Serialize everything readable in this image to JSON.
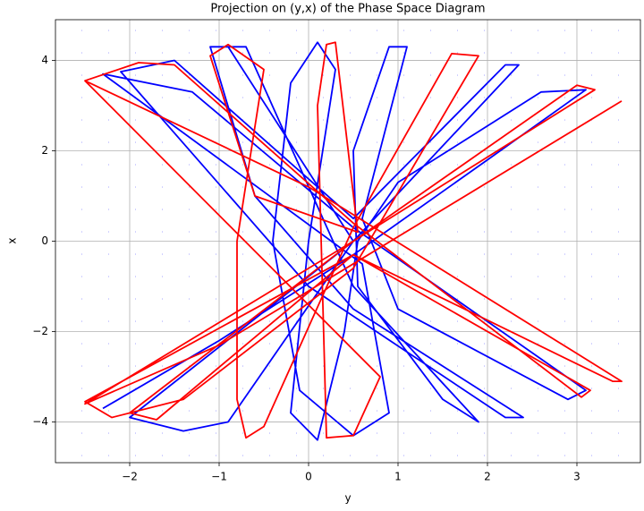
{
  "chart_data": {
    "type": "line",
    "title": "Projection on (y,x) of the Phase Space Diagram",
    "x_label": "y",
    "y_label": "x",
    "xlim": [
      -2.83,
      3.71
    ],
    "ylim": [
      -4.9,
      4.9
    ],
    "xticks": [
      {
        "value": -2,
        "label": "−2"
      },
      {
        "value": -1,
        "label": "−1"
      },
      0,
      1,
      2,
      3
    ],
    "yticks": [
      {
        "value": -4,
        "label": "−4"
      },
      {
        "value": -2,
        "label": "−2"
      },
      0,
      2,
      4
    ],
    "grid": true,
    "series": [
      {
        "color": "#0000ff",
        "x": [
          -2.3,
          -1,
          0.5,
          2,
          3.1,
          2.6,
          1,
          0.55,
          0.4,
          0.1,
          -0.2,
          0,
          0.3,
          0.1,
          -0.2,
          -0.4,
          -0.1,
          0.5,
          0.9,
          0.6,
          -2.3,
          -1.3,
          0.5,
          3.1,
          2.9,
          1,
          0.6,
          1.1,
          0.9,
          0.5,
          0.55,
          1.5,
          1.9,
          0.5,
          -0.7,
          -1.1,
          -0.6,
          0.5,
          2.4,
          2.2,
          0,
          -2.1,
          -1.5,
          0.5,
          2.2,
          2.35,
          0.5,
          -2.0,
          -1.4,
          -0.9,
          0.5,
          -0.9
        ],
        "values": [
          -3.7,
          -2.2,
          -0.3,
          1.8,
          3.35,
          3.3,
          1.3,
          0,
          -2,
          -4.4,
          -3.8,
          0,
          3.8,
          4.4,
          3.5,
          0,
          -3.3,
          -4.3,
          -3.8,
          -0.5,
          3.7,
          3.3,
          0.3,
          -3.3,
          -3.5,
          -1.5,
          0.5,
          4.3,
          4.3,
          2,
          -1,
          -3.5,
          -4,
          -1,
          4.3,
          4.3,
          1,
          -1.5,
          -3.9,
          -3.9,
          -1,
          3.75,
          4,
          0.5,
          3.9,
          3.9,
          0,
          -3.9,
          -4.2,
          -4.0,
          0,
          4.3
        ]
      },
      {
        "color": "#ff0000",
        "x": [
          -2.5,
          0,
          3.5,
          3.4,
          0.5,
          -2.5,
          -2.2,
          -1.4,
          0.5,
          1.9,
          1.6,
          0.5,
          -0.5,
          -0.7,
          -0.8,
          -0.8,
          -0.5,
          -0.9,
          -1.1,
          -0.6,
          0.55,
          0.3,
          0.2,
          0.1,
          0.2,
          0.5,
          0.8,
          -2.5,
          -1.9,
          -1.5,
          0.5,
          3.05,
          3.15,
          0.5,
          -1.7,
          -2.0,
          0.5,
          3.0,
          3.2,
          0.5,
          -2.5,
          -1,
          0.5,
          3.5
        ],
        "values": [
          3.55,
          1.2,
          -3.1,
          -3.1,
          -0.3,
          -3.55,
          -3.9,
          -3.5,
          -0.6,
          4.1,
          4.15,
          0.3,
          -4.1,
          -4.35,
          -3.5,
          0,
          3.8,
          4.35,
          4.1,
          1,
          0.2,
          4.4,
          4.35,
          3,
          -4.35,
          -4.3,
          -3,
          3.55,
          3.95,
          3.9,
          0.4,
          -3.45,
          -3.3,
          -0.3,
          -3.95,
          -3.8,
          0,
          3.45,
          3.35,
          0,
          -3.6,
          -2.3,
          -0.5,
          3.1
        ]
      }
    ]
  }
}
